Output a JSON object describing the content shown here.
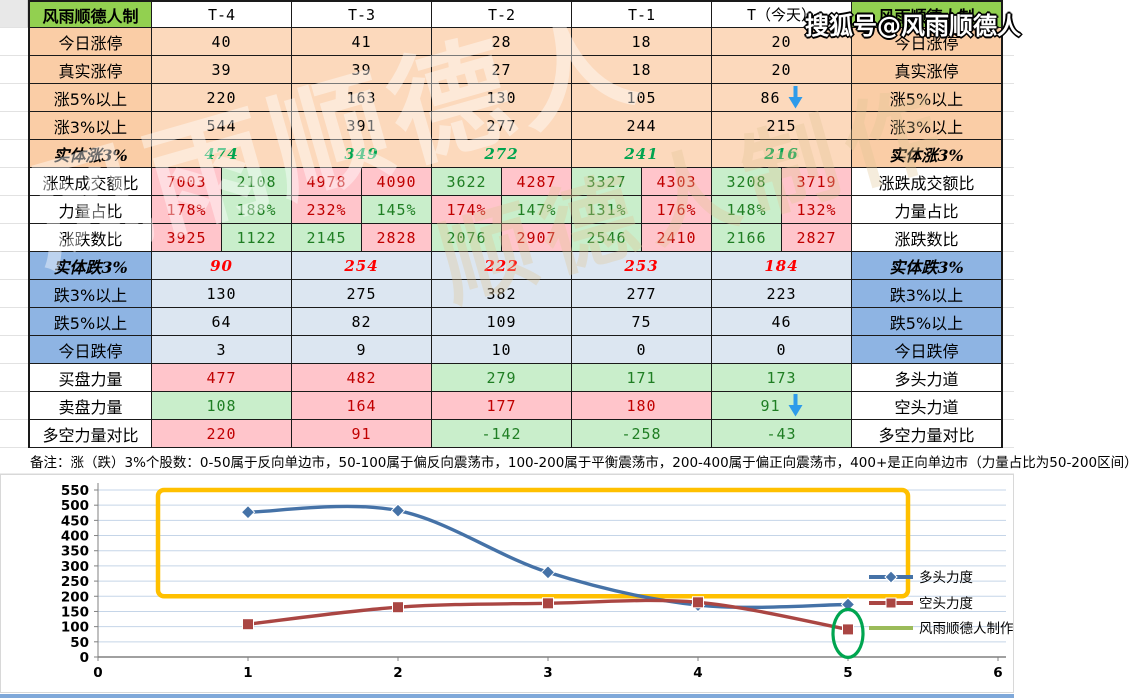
{
  "watermarks": {
    "top_right": "搜狐号@风雨顺德人",
    "big_left": "风雨顺德人",
    "mid_tan": "顺德人制作"
  },
  "table": {
    "corner_title": "风雨顺德人制",
    "right_title": "风雨顺德人制",
    "columns": [
      "T-4",
      "T-3",
      "T-2",
      "T-1",
      "T（今天）"
    ],
    "rows": [
      {
        "label": "今日涨停",
        "right": "今日涨停",
        "style": "orange",
        "cells": [
          "40",
          "41",
          "28",
          "18",
          "20"
        ]
      },
      {
        "label": "真实涨停",
        "right": "真实涨停",
        "style": "orange",
        "cells": [
          "39",
          "39",
          "27",
          "18",
          "20"
        ]
      },
      {
        "label": "涨5%以上",
        "right": "涨5%以上",
        "style": "orange",
        "arrow_col": 4,
        "cells": [
          "220",
          "163",
          "130",
          "105",
          "86"
        ]
      },
      {
        "label": "涨3%以上",
        "right": "涨3%以上",
        "style": "orange",
        "cells": [
          "544",
          "391",
          "277",
          "244",
          "215"
        ]
      },
      {
        "label": "实体涨3%",
        "right": "实体涨3%",
        "style": "orange-em",
        "cells": [
          "474",
          "349",
          "272",
          "241",
          "216"
        ]
      },
      {
        "label": "涨跌成交额比",
        "right": "涨跌成交额比",
        "style": "pair",
        "cells": [
          [
            "7003",
            "p",
            "2108",
            "g"
          ],
          [
            "4978",
            "p",
            "4090",
            "p"
          ],
          [
            "3622",
            "g",
            "4287",
            "p"
          ],
          [
            "3327",
            "g",
            "4303",
            "p"
          ],
          [
            "3208",
            "g",
            "3719",
            "p"
          ]
        ]
      },
      {
        "label": "力量占比",
        "right": "力量占比",
        "style": "pair",
        "cells": [
          [
            "178%",
            "p",
            "188%",
            "g"
          ],
          [
            "232%",
            "p",
            "145%",
            "g"
          ],
          [
            "174%",
            "p",
            "147%",
            "g"
          ],
          [
            "131%",
            "g",
            "176%",
            "p"
          ],
          [
            "148%",
            "g",
            "132%",
            "p"
          ]
        ]
      },
      {
        "label": "涨跌数比",
        "right": "涨跌数比",
        "style": "pair",
        "cells": [
          [
            "3925",
            "p",
            "1122",
            "g"
          ],
          [
            "2145",
            "g",
            "2828",
            "p"
          ],
          [
            "2076",
            "g",
            "2907",
            "p"
          ],
          [
            "2546",
            "g",
            "2410",
            "p"
          ],
          [
            "2166",
            "g",
            "2827",
            "p"
          ]
        ]
      },
      {
        "label": "实体跌3%",
        "right": "实体跌3%",
        "style": "blue-em",
        "cells": [
          "90",
          "254",
          "222",
          "253",
          "184"
        ]
      },
      {
        "label": "跌3%以上",
        "right": "跌3%以上",
        "style": "blue",
        "cells": [
          "130",
          "275",
          "382",
          "277",
          "223"
        ]
      },
      {
        "label": "跌5%以上",
        "right": "跌5%以上",
        "style": "blue",
        "cells": [
          "64",
          "82",
          "109",
          "75",
          "46"
        ]
      },
      {
        "label": "今日跌停",
        "right": "今日跌停",
        "style": "blue",
        "cells": [
          "3",
          "9",
          "10",
          "0",
          "0"
        ]
      },
      {
        "label": "买盘力量",
        "right": "多头力道",
        "style": "solid",
        "cells": [
          [
            "477",
            "p"
          ],
          [
            "482",
            "p"
          ],
          [
            "279",
            "g"
          ],
          [
            "171",
            "g"
          ],
          [
            "173",
            "g"
          ]
        ]
      },
      {
        "label": "卖盘力量",
        "right": "空头力道",
        "style": "solid",
        "arrow_col": 4,
        "cells": [
          [
            "108",
            "g"
          ],
          [
            "164",
            "p"
          ],
          [
            "177",
            "p"
          ],
          [
            "180",
            "p"
          ],
          [
            "91",
            "g"
          ]
        ]
      },
      {
        "label": "多空力量对比",
        "right": "多空力量对比",
        "style": "solid",
        "cells": [
          [
            "220",
            "p"
          ],
          [
            "91",
            "p"
          ],
          [
            "-142",
            "g"
          ],
          [
            "-258",
            "g"
          ],
          [
            "-43",
            "g"
          ]
        ]
      }
    ],
    "note": "备注：涨（跌）3%个股数：0-50属于反向单边市，50-100属于偏反向震荡市，100-200属于平衡震荡市，200-400属于偏正向震荡市，400+是正向单边市（力量占比为50-200区间）"
  },
  "chart_data": {
    "type": "line",
    "x": [
      1,
      2,
      3,
      4,
      5
    ],
    "xlim": [
      0,
      6
    ],
    "ylim": [
      0,
      550
    ],
    "ytick_step": 50,
    "xticks": [
      0,
      1,
      2,
      3,
      4,
      5,
      6
    ],
    "grid": "horizontal",
    "legend_position": "right",
    "series": [
      {
        "name": "多头力度",
        "color": "#4572A7",
        "marker": "diamond",
        "values": [
          477,
          482,
          279,
          171,
          173
        ]
      },
      {
        "name": "空头力度",
        "color": "#AA4643",
        "marker": "square",
        "values": [
          108,
          164,
          177,
          180,
          91
        ]
      },
      {
        "name": "风雨顺德人制作",
        "color": "#9BBB59",
        "marker": "none",
        "values": []
      }
    ],
    "annotations": {
      "highlight_box": {
        "color": "#FFC000",
        "x1": 0.4,
        "x2": 5.4,
        "y1": 200,
        "y2": 550
      },
      "circle": {
        "color": "#00A550",
        "x": 5,
        "y": 91
      }
    },
    "arrow_color": "#2E9BEA"
  }
}
